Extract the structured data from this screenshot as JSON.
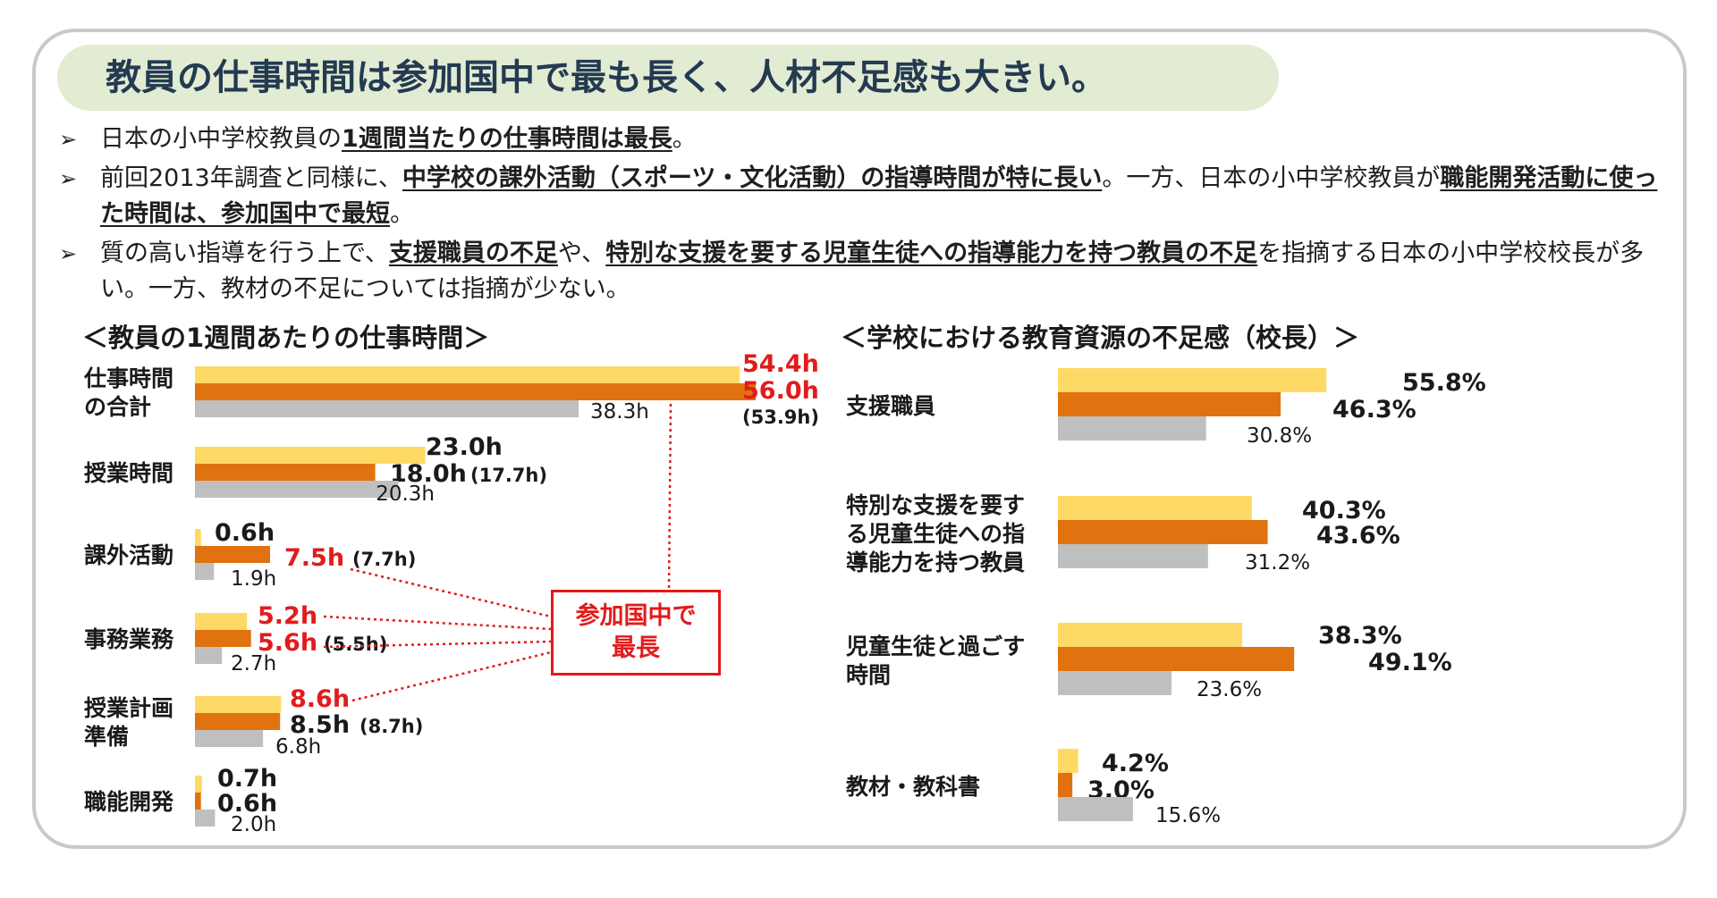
{
  "header": {
    "title": "教員の仕事時間は参加国中で最も長く、人材不足感も大きい。"
  },
  "bullets": [
    {
      "arrow": "➢",
      "parts": [
        {
          "text": "日本の小中学校教員の",
          "hl": false
        },
        {
          "text": "1週間当たりの仕事時間は最長",
          "hl": true
        },
        {
          "text": "。",
          "hl": false
        }
      ]
    },
    {
      "arrow": "➢",
      "parts": [
        {
          "text": "前回2013年調査と同様に、",
          "hl": false
        },
        {
          "text": "中学校の課外活動（スポーツ・文化活動）の指導時間が特に長い",
          "hl": true
        },
        {
          "text": "。一方、日本の小中学校教員が",
          "hl": false
        },
        {
          "text": "職能開発活動に使った時間は、参加国中で最短",
          "hl": true
        },
        {
          "text": "。",
          "hl": false
        }
      ]
    },
    {
      "arrow": "➢",
      "parts": [
        {
          "text": "質の高い指導を行う上で、",
          "hl": false
        },
        {
          "text": "支援職員の不足",
          "hl": true
        },
        {
          "text": "や、",
          "hl": false
        },
        {
          "text": "特別な支援を要する児童生徒への指導能力を持つ教員の不足",
          "hl": true
        },
        {
          "text": "を指摘する日本の小中学校校長が多い。一方、教材の不足については指摘が少ない。",
          "hl": false
        }
      ]
    }
  ],
  "colors": {
    "yellow": "#ffd966",
    "orange": "#e0720f",
    "gray": "#bfbfbf",
    "red": "#e21b1b",
    "title_bg": "#e2ecd2",
    "title_text": "#243a52"
  },
  "note_box": {
    "text": "参加国中で\n最長"
  },
  "chart_data": [
    {
      "type": "bar",
      "title": "＜教員の1週間あたりの仕事時間＞",
      "orientation": "horizontal",
      "xlim": [
        0,
        60
      ],
      "categories": [
        "仕事時間\nの合計",
        "授業時間",
        "課外活動",
        "事務業務",
        "授業計画\n準備",
        "職能開発"
      ],
      "series": [
        {
          "color": "#ffd966",
          "values": [
            54.4,
            23.0,
            0.6,
            5.2,
            8.6,
            0.7
          ],
          "labels": [
            "54.4h",
            "23.0h",
            "0.6h",
            "5.2h",
            "8.6h",
            "0.7h"
          ],
          "label_red": [
            true,
            false,
            false,
            true,
            true,
            false
          ]
        },
        {
          "color": "#e0720f",
          "values": [
            56.0,
            18.0,
            7.5,
            5.6,
            8.5,
            0.6
          ],
          "labels": [
            "56.0h",
            "18.0h",
            "7.5h",
            "5.6h",
            "8.5h",
            "0.6h"
          ],
          "extra": [
            "(53.9h)",
            "(17.7h)",
            "(7.7h)",
            "(5.5h)",
            "(8.7h)",
            ""
          ],
          "label_red": [
            true,
            false,
            true,
            true,
            false,
            false
          ]
        },
        {
          "color": "#bfbfbf",
          "values": [
            38.3,
            20.3,
            1.9,
            2.7,
            6.8,
            2.0
          ],
          "labels": [
            "38.3h",
            "20.3h",
            "1.9h",
            "2.7h",
            "6.8h",
            "2.0h"
          ],
          "label_red": [
            false,
            false,
            false,
            false,
            false,
            false
          ]
        }
      ]
    },
    {
      "type": "bar",
      "title": "＜学校における教育資源の不足感（校長）＞",
      "orientation": "horizontal",
      "xlim": [
        0,
        100
      ],
      "categories": [
        "支援職員",
        "特別な支援を要す\nる児童生徒への指\n導能力を持つ教員",
        "児童生徒と過ごす\n時間",
        "教材・教科書"
      ],
      "series": [
        {
          "color": "#ffd966",
          "values": [
            55.8,
            40.3,
            38.3,
            4.2
          ],
          "labels": [
            "55.8%",
            "40.3%",
            "38.3%",
            "4.2%"
          ]
        },
        {
          "color": "#e0720f",
          "values": [
            46.3,
            43.6,
            49.1,
            3.0
          ],
          "labels": [
            "46.3%",
            "43.6%",
            "49.1%",
            "3.0%"
          ]
        },
        {
          "color": "#bfbfbf",
          "values": [
            30.8,
            31.2,
            23.6,
            15.6
          ],
          "labels": [
            "30.8%",
            "31.2%",
            "23.6%",
            "15.6%"
          ]
        }
      ]
    }
  ]
}
